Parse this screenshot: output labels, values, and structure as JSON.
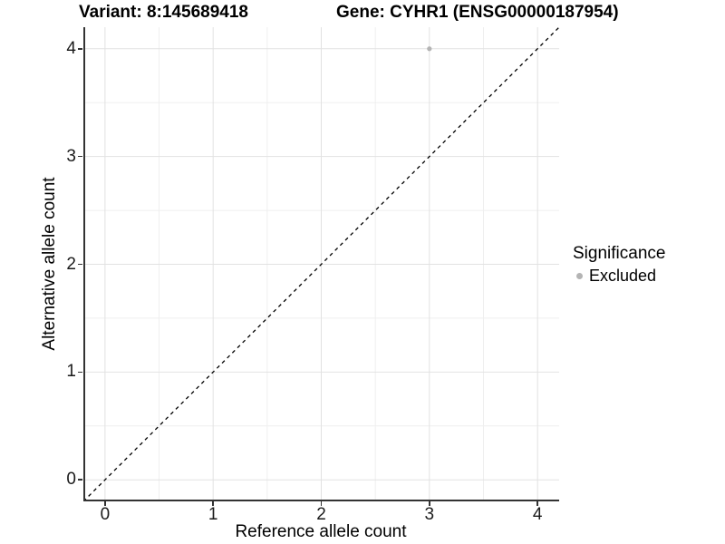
{
  "header": {
    "variant_title": "Variant: 8:145689418",
    "gene_title": "Gene: CYHR1 (ENSG00000187954)"
  },
  "legend": {
    "title": "Significance",
    "items": [
      {
        "label": "Excluded",
        "color": "#b4b4b4"
      }
    ]
  },
  "chart_data": {
    "type": "scatter",
    "title": "Variant: 8:145689418 | Gene: CYHR1 (ENSG00000187954)",
    "xlabel": "Reference allele count",
    "ylabel": "Alternative allele count",
    "xlim": [
      -0.2,
      4.2
    ],
    "ylim": [
      -0.2,
      4.2
    ],
    "x_ticks": [
      0,
      1,
      2,
      3,
      4
    ],
    "y_ticks": [
      0,
      1,
      2,
      3,
      4
    ],
    "x_minor_ticks": [
      0.5,
      1.5,
      2.5,
      3.5
    ],
    "y_minor_ticks": [
      0.5,
      1.5,
      2.5,
      3.5
    ],
    "grid": "major and minor gridlines on, white background",
    "legend_position": "right",
    "series": [
      {
        "name": "Excluded",
        "marker": "circle",
        "color": "#b4b4b4",
        "points": [
          [
            3,
            4
          ]
        ]
      }
    ],
    "reference_line": {
      "type": "abline",
      "slope": 1,
      "intercept": 0,
      "linestyle": "dashed",
      "color": "#000000"
    }
  },
  "style": {
    "background": "#ffffff",
    "axis_line_color": "#333333",
    "tick_color": "#333333",
    "tick_label_color": "#1a1a1a",
    "grid_major_color": "#e2e2e2",
    "grid_minor_color": "#efefef",
    "point_color": "#b4b4b4",
    "reference_line_color": "#000000"
  }
}
